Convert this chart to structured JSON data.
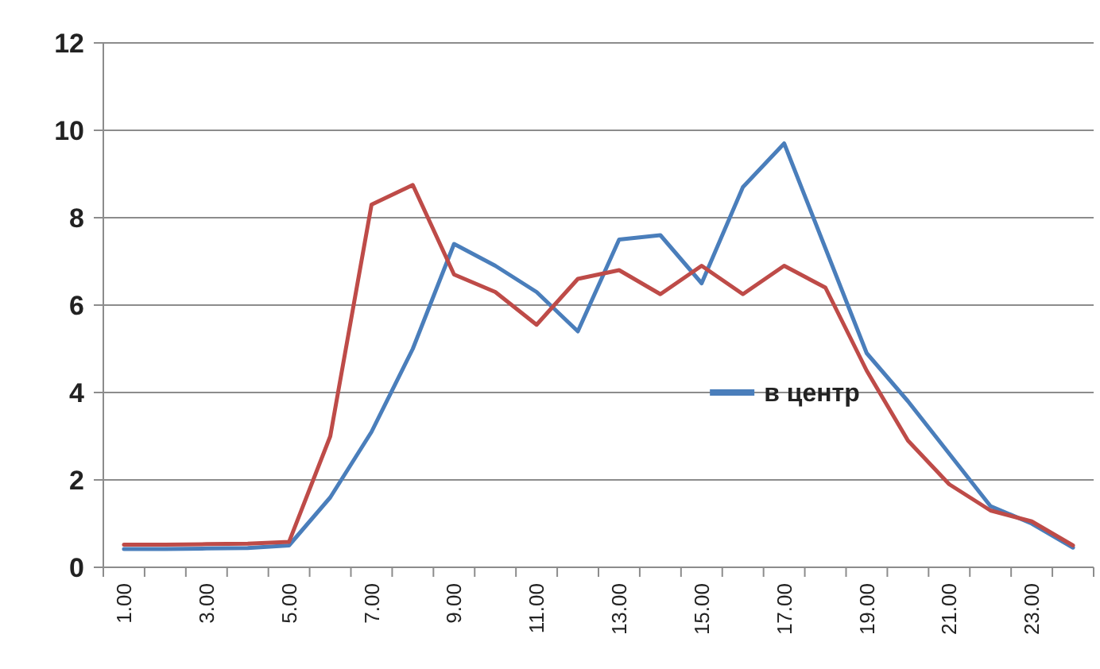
{
  "chart_data": {
    "type": "line",
    "categories": [
      "1.00",
      null,
      "3.00",
      null,
      "5.00",
      null,
      "7.00",
      null,
      "9.00",
      null,
      "11.00",
      null,
      "13.00",
      null,
      "15.00",
      null,
      "17.00",
      null,
      "19.00",
      null,
      "21.00",
      null,
      "23.00",
      null
    ],
    "series": [
      {
        "name": "в центр",
        "color": "#4a7ebb",
        "values": [
          0.42,
          0.42,
          0.43,
          0.44,
          0.5,
          1.6,
          3.1,
          5,
          7.4,
          6.9,
          6.3,
          5.4,
          7.5,
          7.6,
          6.5,
          8.7,
          9.7,
          7.3,
          4.9,
          3.8,
          2.6,
          1.4,
          1.0,
          0.45
        ]
      },
      {
        "color": "#be4b48",
        "values": [
          0.52,
          0.52,
          0.53,
          0.54,
          0.58,
          3.0,
          8.3,
          8.75,
          6.7,
          6.3,
          5.55,
          6.6,
          6.8,
          6.25,
          6.9,
          6.25,
          6.9,
          6.4,
          4.5,
          2.9,
          1.9,
          1.3,
          1.05,
          0.5
        ]
      }
    ],
    "ylim": [
      0,
      12
    ],
    "yticks": [
      0,
      2,
      4,
      6,
      8,
      10,
      12
    ],
    "grid": "y",
    "legend": "right",
    "marker": "none",
    "line_style": "solid"
  }
}
